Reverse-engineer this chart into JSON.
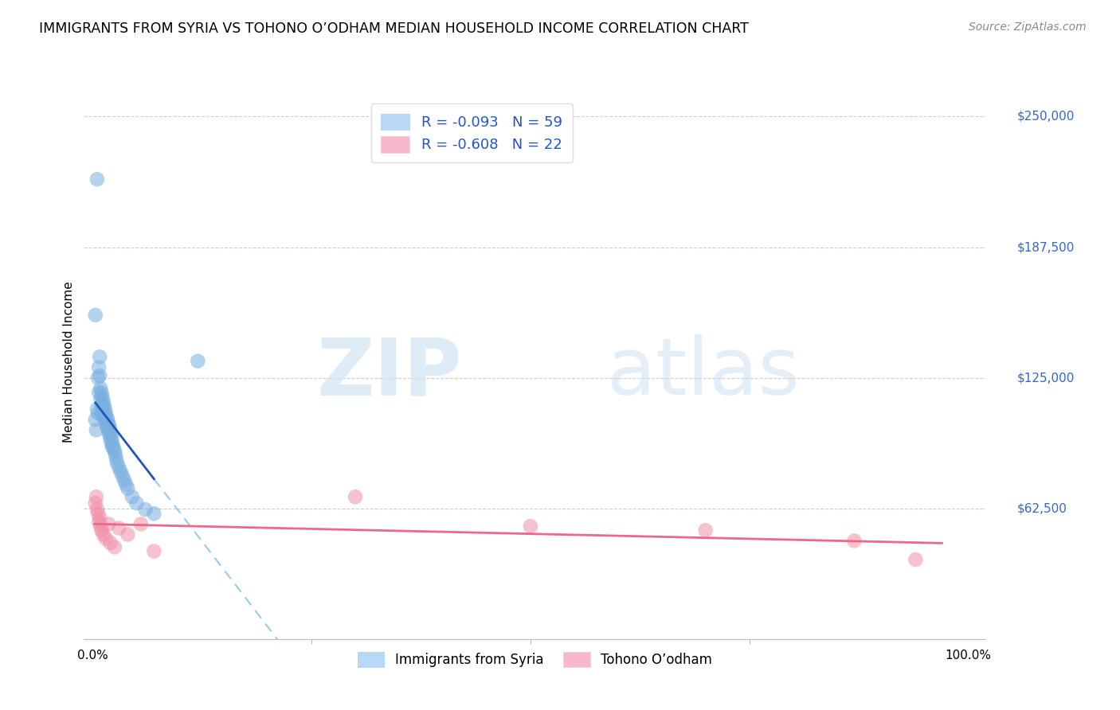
{
  "title": "IMMIGRANTS FROM SYRIA VS TOHONO O’ODHAM MEDIAN HOUSEHOLD INCOME CORRELATION CHART",
  "source": "Source: ZipAtlas.com",
  "ylabel": "Median Household Income",
  "ytick_labels": [
    "$250,000",
    "$187,500",
    "$125,000",
    "$62,500"
  ],
  "ytick_values": [
    250000,
    187500,
    125000,
    62500
  ],
  "ylim": [
    0,
    265000
  ],
  "xlim": [
    -0.01,
    1.02
  ],
  "legend_label_syria": "Immigrants from Syria",
  "legend_label_tohono": "Tohono O’odham",
  "syria_color": "#7ab0e0",
  "tohono_color": "#f090a8",
  "syria_line_color": "#2255bb",
  "tohono_line_color": "#ee6688",
  "syria_dash_color": "#99ccee",
  "watermark_zip": "ZIP",
  "watermark_atlas": "atlas",
  "legend_r1": "R = -0.093",
  "legend_n1": "N = 59",
  "legend_r2": "R = -0.608",
  "legend_n2": "N = 22",
  "legend_patch1_color": "#b8d8f8",
  "legend_patch2_color": "#f8b8cc",
  "legend_text_color": "#2255cc",
  "xtick_left": "0.0%",
  "xtick_right": "100.0%",
  "ytick_color": "#3366cc",
  "grid_color": "#cccccc",
  "syria_x": [
    0.003,
    0.004,
    0.005,
    0.005,
    0.006,
    0.006,
    0.007,
    0.007,
    0.008,
    0.008,
    0.009,
    0.009,
    0.01,
    0.01,
    0.01,
    0.011,
    0.011,
    0.011,
    0.012,
    0.012,
    0.012,
    0.013,
    0.013,
    0.014,
    0.014,
    0.015,
    0.015,
    0.016,
    0.016,
    0.017,
    0.017,
    0.018,
    0.018,
    0.019,
    0.019,
    0.02,
    0.02,
    0.021,
    0.021,
    0.022,
    0.022,
    0.023,
    0.024,
    0.025,
    0.026,
    0.027,
    0.028,
    0.03,
    0.032,
    0.034,
    0.036,
    0.038,
    0.04,
    0.045,
    0.05,
    0.06,
    0.07,
    0.12,
    0.003
  ],
  "syria_y": [
    105000,
    100000,
    220000,
    110000,
    108000,
    125000,
    130000,
    118000,
    126000,
    135000,
    120000,
    115000,
    118000,
    112000,
    108000,
    116000,
    112000,
    108000,
    114000,
    110000,
    106000,
    112000,
    108000,
    110000,
    106000,
    108000,
    104000,
    106000,
    102000,
    105000,
    101000,
    103000,
    99000,
    102000,
    98000,
    100000,
    96000,
    98000,
    94000,
    96000,
    92000,
    93000,
    91000,
    90000,
    88000,
    86000,
    84000,
    82000,
    80000,
    78000,
    76000,
    74000,
    72000,
    68000,
    65000,
    62000,
    60000,
    133000,
    155000
  ],
  "tohono_x": [
    0.003,
    0.004,
    0.005,
    0.006,
    0.007,
    0.008,
    0.009,
    0.01,
    0.012,
    0.015,
    0.018,
    0.02,
    0.025,
    0.03,
    0.04,
    0.055,
    0.07,
    0.3,
    0.5,
    0.7,
    0.87,
    0.94
  ],
  "tohono_y": [
    65000,
    68000,
    62000,
    60000,
    56000,
    58000,
    54000,
    52000,
    50000,
    48000,
    55000,
    46000,
    44000,
    53000,
    50000,
    55000,
    42000,
    68000,
    54000,
    52000,
    47000,
    38000
  ]
}
